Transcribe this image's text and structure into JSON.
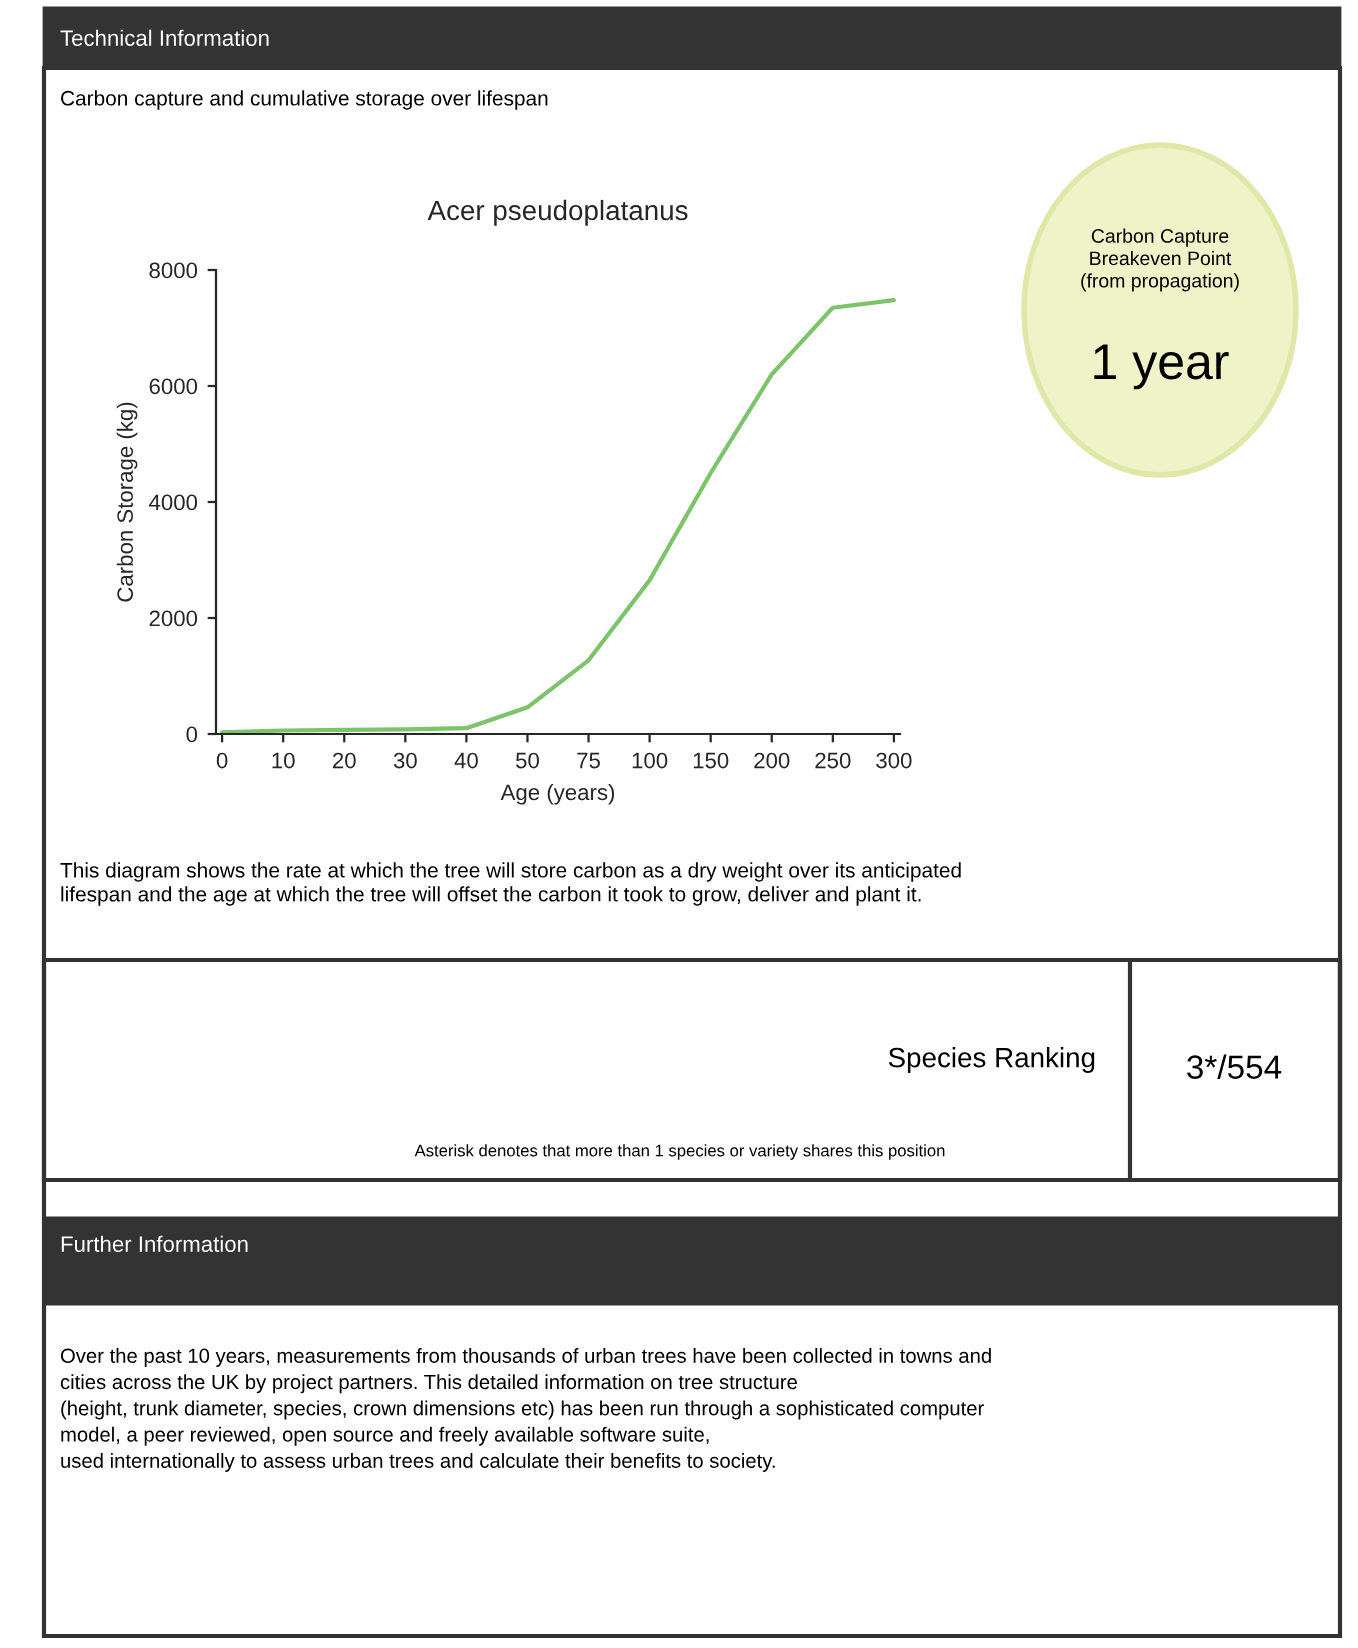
{
  "chart_data": {
    "type": "line",
    "title": "Acer pseudoplatanus",
    "xlabel": "Age (years)",
    "ylabel": "Carbon Storage (kg)",
    "categories": [
      "0",
      "10",
      "20",
      "30",
      "40",
      "50",
      "75",
      "100",
      "150",
      "200",
      "250",
      "300"
    ],
    "series": [
      {
        "color": "#7cc46a",
        "values": [
          30,
          60,
          70,
          80,
          100,
          460,
          1270,
          2650,
          4500,
          6200,
          7350,
          7480
        ]
      }
    ],
    "ylim": [
      0,
      8000
    ],
    "yticks": [
      0,
      2000,
      4000,
      6000,
      8000
    ],
    "grid": false,
    "marker": "none",
    "line_style": "solid",
    "annotations": [
      "Technical Information",
      "Carbon capture and cumulative storage over lifespan",
      "Carbon Capture\nBreakeven Point\n(from propagation)",
      "1 year",
      "This diagram shows the rate at which the tree will store carbon as a dry weight over its anticipated\nlifespan and the age at which the tree will offset the carbon it took to grow, deliver and plant it.",
      "Species Ranking",
      "3*/554",
      "Asterisk denotes that more than 1 species or variety shares this position",
      "Further Information",
      "Over the past 10 years, measurements from thousands of urban trees have been collected in towns and\ncities across the UK by project partners. This detailed information on tree structure\n(height, trunk diameter, species, crown dimensions etc) has been run through a sophisticated computer\nmodel, a peer reviewed, open source and freely available software suite,\nused internationally to assess urban trees and calculate their benefits to society."
    ]
  }
}
